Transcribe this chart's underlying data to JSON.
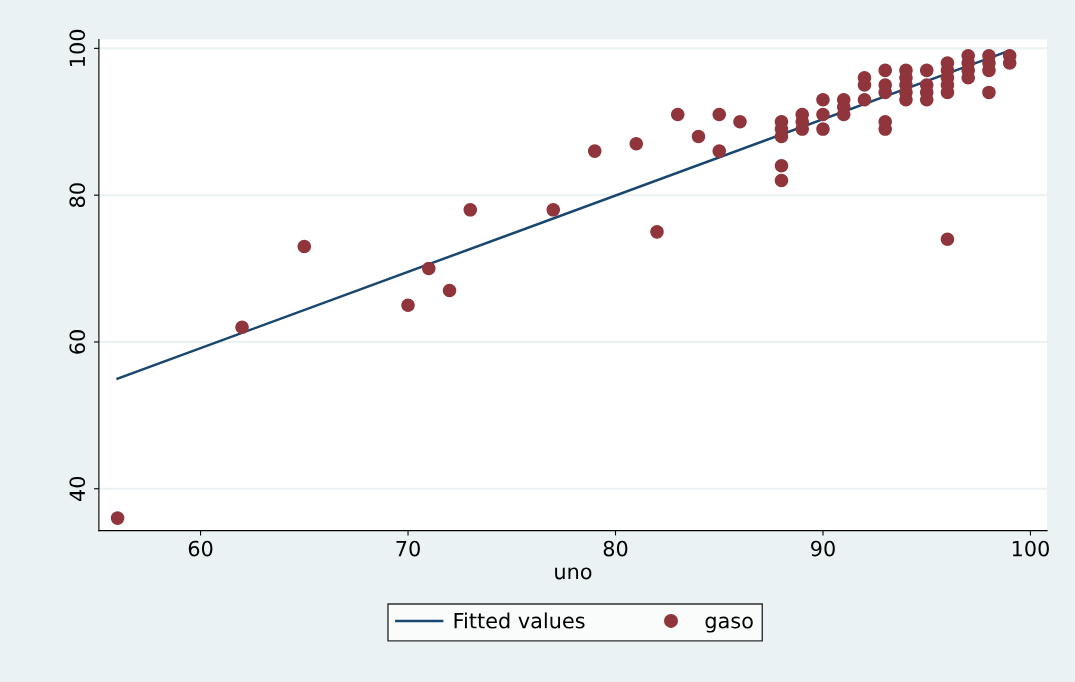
{
  "chart_data": {
    "type": "scatter",
    "xlabel": "uno",
    "xlim": [
      55.1,
      100.8
    ],
    "ylim": [
      34.3,
      101.2
    ],
    "xticks": [
      60,
      70,
      80,
      90,
      100
    ],
    "yticks": [
      40,
      60,
      80,
      100
    ],
    "grid": "y",
    "legend": "bottom",
    "marker": "circle",
    "series": [
      {
        "name": "Fitted values",
        "type": "line",
        "color": "#1a476f",
        "line_style": "solid",
        "marker": "none",
        "x": [
          56,
          99
        ],
        "values": [
          55.0,
          99.7
        ]
      },
      {
        "name": "gaso",
        "color": "#90353b",
        "x": [
          56,
          62,
          65,
          70,
          71,
          72,
          73,
          77,
          79,
          81,
          82,
          83,
          84,
          85,
          85,
          86,
          88,
          88,
          88,
          88,
          88,
          89,
          89,
          89,
          90,
          90,
          90,
          91,
          91,
          91,
          92,
          92,
          92,
          93,
          93,
          93,
          93,
          93,
          94,
          94,
          94,
          94,
          94,
          95,
          95,
          95,
          95,
          96,
          96,
          96,
          96,
          96,
          96,
          97,
          97,
          97,
          97,
          98,
          98,
          98,
          98,
          99,
          99
        ],
        "values": [
          36,
          62,
          73,
          65,
          70,
          67,
          78,
          78,
          86,
          87,
          75,
          91,
          88,
          91,
          86,
          90,
          90,
          89,
          88,
          84,
          82,
          91,
          90,
          89,
          93,
          91,
          89,
          93,
          92,
          91,
          96,
          95,
          93,
          97,
          95,
          94,
          90,
          89,
          97,
          96,
          95,
          94,
          93,
          97,
          95,
          94,
          93,
          98,
          97,
          96,
          95,
          94,
          74,
          99,
          98,
          97,
          96,
          99,
          98,
          97,
          94,
          99,
          98
        ]
      }
    ]
  }
}
